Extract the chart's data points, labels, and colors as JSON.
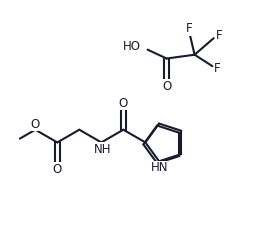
{
  "bg_color": "#ffffff",
  "line_color": "#1a1a2e",
  "bond_width": 1.5,
  "font_size": 8.5,
  "fig_width": 2.57,
  "fig_height": 2.34,
  "dpi": 100,
  "xlim": [
    0,
    10
  ],
  "ylim": [
    0,
    9
  ]
}
